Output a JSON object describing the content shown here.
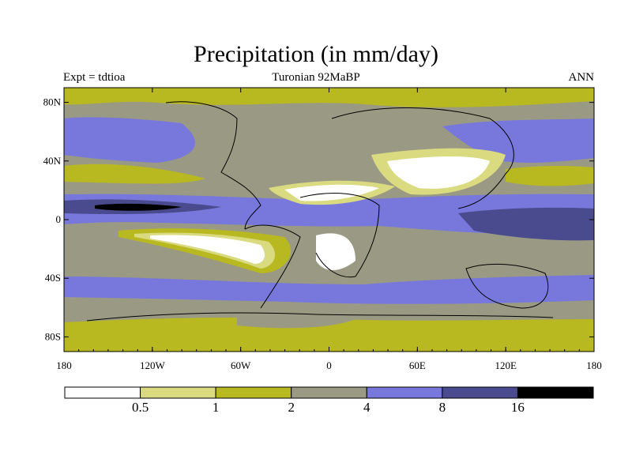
{
  "title": "Precipitation (in mm/day)",
  "subtitle_left": "Expt = tdtioa",
  "subtitle_center": "Turonian  92MaBP",
  "subtitle_right": "ANN",
  "x_ticks": [
    {
      "value": -180,
      "label": "180"
    },
    {
      "value": -120,
      "label": "120W"
    },
    {
      "value": -60,
      "label": "60W"
    },
    {
      "value": 0,
      "label": "0"
    },
    {
      "value": 60,
      "label": "60E"
    },
    {
      "value": 120,
      "label": "120E"
    },
    {
      "value": 180,
      "label": "180"
    }
  ],
  "y_ticks": [
    {
      "value": 80,
      "label": "80N"
    },
    {
      "value": 40,
      "label": "40N"
    },
    {
      "value": 0,
      "label": "0"
    },
    {
      "value": -40,
      "label": "40S"
    },
    {
      "value": -80,
      "label": "80S"
    }
  ],
  "colorbar": {
    "colors": [
      "#ffffff",
      "#dada80",
      "#b8b820",
      "#9a9a84",
      "#7878dc",
      "#4a4a8e",
      "#000000"
    ],
    "labels": [
      "0.5",
      "1",
      "2",
      "4",
      "8",
      "16"
    ]
  },
  "colors": {
    "green": "#b8b820",
    "light": "#dada80",
    "gray": "#9a9a84",
    "blue": "#7878dc",
    "navy": "#4a4a8e",
    "black": "#000000",
    "white": "#ffffff"
  }
}
